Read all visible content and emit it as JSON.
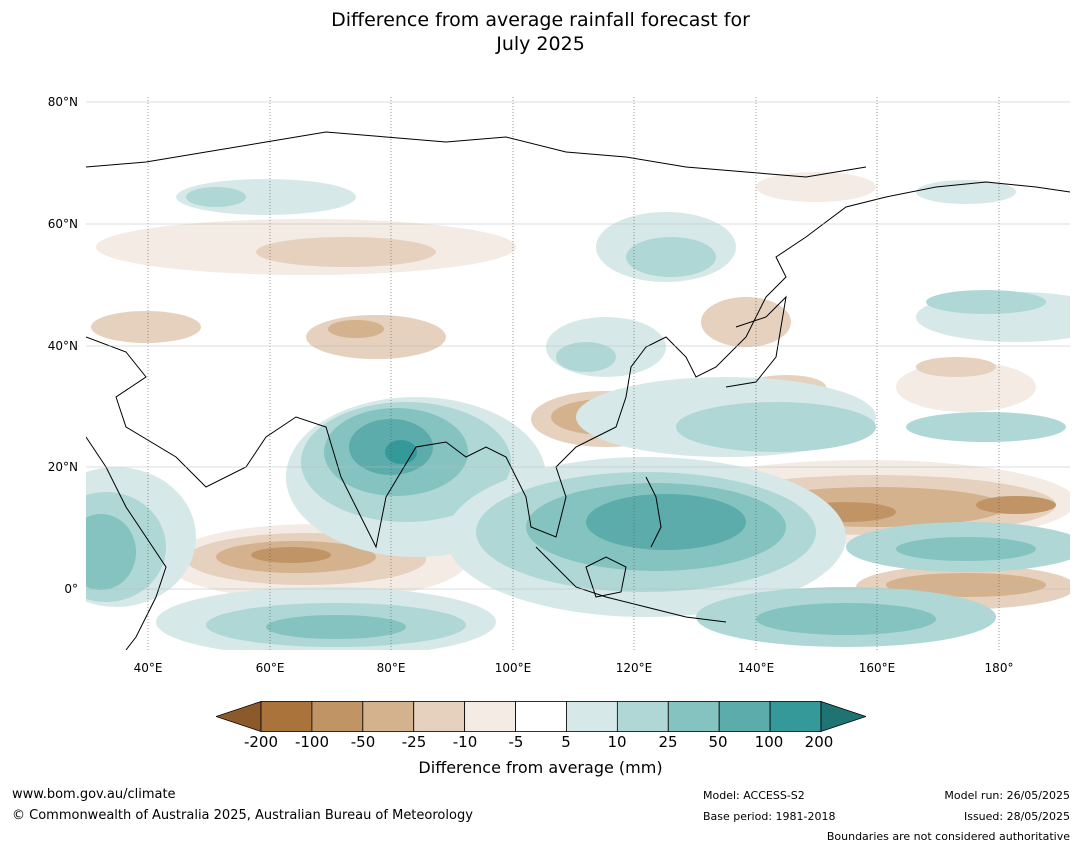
{
  "title_line1": "Difference from average rainfall forecast for",
  "title_line2": "July 2025",
  "lat_labels": [
    "80°N",
    "60°N",
    "40°N",
    "20°N",
    "0°"
  ],
  "lon_labels": [
    "40°E",
    "60°E",
    "80°E",
    "100°E",
    "120°E",
    "140°E",
    "160°E",
    "180°"
  ],
  "legend": {
    "ticks": [
      "-200",
      "-100",
      "-50",
      "-25",
      "-10",
      "-5",
      "5",
      "10",
      "25",
      "50",
      "100",
      "200"
    ],
    "colors": [
      "#8c5a2a",
      "#a9733b",
      "#c19465",
      "#d4b28e",
      "#e5d1bd",
      "#f3ebe4",
      "#ffffff",
      "#d6e9e8",
      "#aed7d5",
      "#84c3c0",
      "#5bacaa",
      "#35999a",
      "#1f7372"
    ],
    "label": "Difference from average (mm)"
  },
  "footer": {
    "url": "www.bom.gov.au/climate",
    "copyright": "© Commonwealth of Australia 2025, Australian Bureau of Meteorology",
    "model": "Model: ACCESS-S2",
    "base_period": "Base period: 1981-2018",
    "model_run": "Model run: 26/05/2025",
    "issued": "Issued: 28/05/2025",
    "disclaimer": "Boundaries are not considered authoritative"
  }
}
